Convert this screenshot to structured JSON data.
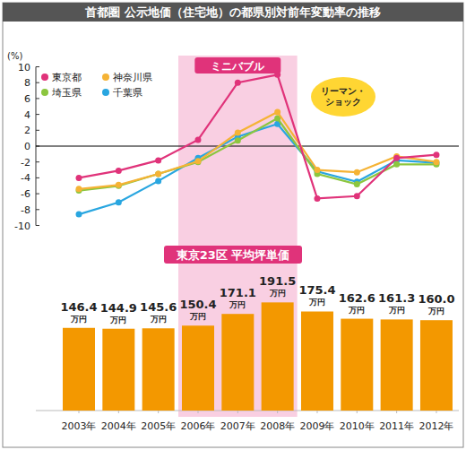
{
  "title": "首都圏 公示地価（住宅地）の都県別対前年変動率の推移",
  "chart_data": [
    {
      "type": "line",
      "ylabel": "(%)",
      "categories": [
        "2003年",
        "2004年",
        "2005年",
        "2006年",
        "2007年",
        "2008年",
        "2009年",
        "2010年",
        "2011年",
        "2012年"
      ],
      "series": [
        {
          "name": "東京都",
          "color": "#e0337a",
          "values": [
            -4.0,
            -3.1,
            -1.8,
            0.8,
            8.0,
            9.0,
            -6.6,
            -6.3,
            -1.5,
            -1.1
          ]
        },
        {
          "name": "神奈川県",
          "color": "#f5b335",
          "values": [
            -5.4,
            -4.9,
            -3.5,
            -1.9,
            1.7,
            4.3,
            -3.0,
            -3.3,
            -1.3,
            -2.0
          ]
        },
        {
          "name": "埼玉県",
          "color": "#8cc63f",
          "values": [
            -5.6,
            -5.0,
            -3.5,
            -2.0,
            0.7,
            3.5,
            -3.5,
            -4.8,
            -2.3,
            -2.3
          ]
        },
        {
          "name": "千葉県",
          "color": "#29a6e0",
          "values": [
            -8.6,
            -7.1,
            -4.4,
            -1.5,
            1.2,
            2.8,
            -3.2,
            -4.5,
            -1.8,
            -2.1
          ]
        }
      ],
      "ylim": [
        -10,
        10
      ],
      "yticks": [
        -10,
        -8,
        -6,
        -4,
        -2,
        0,
        2,
        4,
        6,
        8,
        10
      ],
      "grid": false,
      "legend": "upper left",
      "marker": "circle",
      "tick_labels": "y",
      "annotations": [
        {
          "text": "ミニバブル",
          "from": "2006年",
          "to": "2008年"
        },
        {
          "text": "リーマン・ショック"
        }
      ]
    },
    {
      "type": "bar",
      "title": "東京23区 平均坪単価",
      "categories": [
        "2003年",
        "2004年",
        "2005年",
        "2006年",
        "2007年",
        "2008年",
        "2009年",
        "2010年",
        "2011年",
        "2012年"
      ],
      "values": [
        146.4,
        144.9,
        145.6,
        150.4,
        171.1,
        191.5,
        175.4,
        162.6,
        161.3,
        160.0
      ],
      "value_labels": [
        "146.4万円",
        "144.9万円",
        "145.6万円",
        "150.4万円",
        "171.1万円",
        "191.5万円",
        "175.4万円",
        "162.6万円",
        "161.3万円",
        "160.0万円"
      ],
      "color": "#f39800",
      "ylim": [
        0,
        200
      ],
      "yticks": [],
      "tick_labels": "x",
      "data_labels": true
    }
  ]
}
